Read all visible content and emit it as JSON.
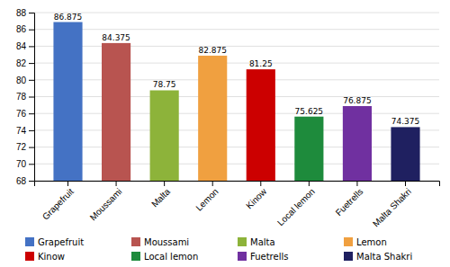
{
  "chart_data": {
    "type": "bar",
    "categories": [
      "Grapefruit",
      "Moussami",
      "Malta",
      "Lemon",
      "Kinow",
      "Local lemon",
      "Fuetrells",
      "Malta Shakri"
    ],
    "values": [
      86.875,
      84.375,
      78.75,
      82.875,
      81.25,
      75.625,
      76.875,
      74.375
    ],
    "colors": [
      "#4472c4",
      "#b85450",
      "#8db33a",
      "#f0a040",
      "#cc0000",
      "#1e8b3c",
      "#7030a0",
      "#1f2060"
    ],
    "ylim": [
      68,
      88
    ],
    "yticks": [
      68,
      70,
      72,
      74,
      76,
      78,
      80,
      82,
      84,
      86,
      88
    ],
    "grid": true,
    "data_labels": true,
    "legend": "bottom"
  }
}
